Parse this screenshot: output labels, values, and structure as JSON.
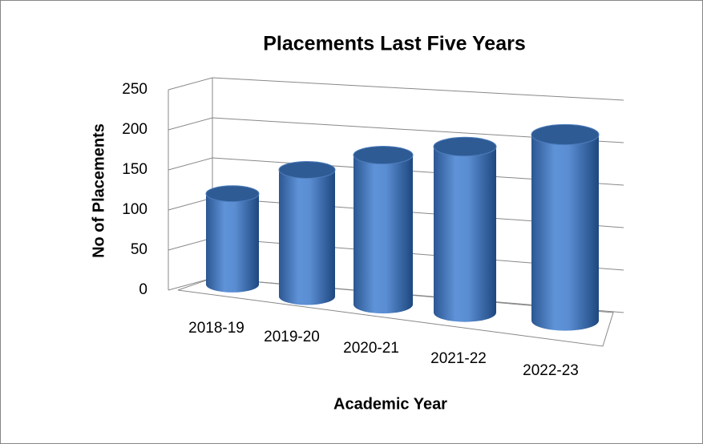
{
  "chart_data": {
    "type": "bar3d_cylinder",
    "title": "Placements Last Five Years",
    "x_label": "Academic Year",
    "y_label": "No of  Placements",
    "categories": [
      "2018-19",
      "2019-20",
      "2020-21",
      "2021-22",
      "2022-23"
    ],
    "values": [
      110,
      145,
      165,
      180,
      200
    ],
    "color": "#4a7cc0",
    "ylim": [
      0,
      250
    ],
    "yticks": [
      0,
      50,
      100,
      150,
      200,
      250
    ],
    "grid": true
  }
}
